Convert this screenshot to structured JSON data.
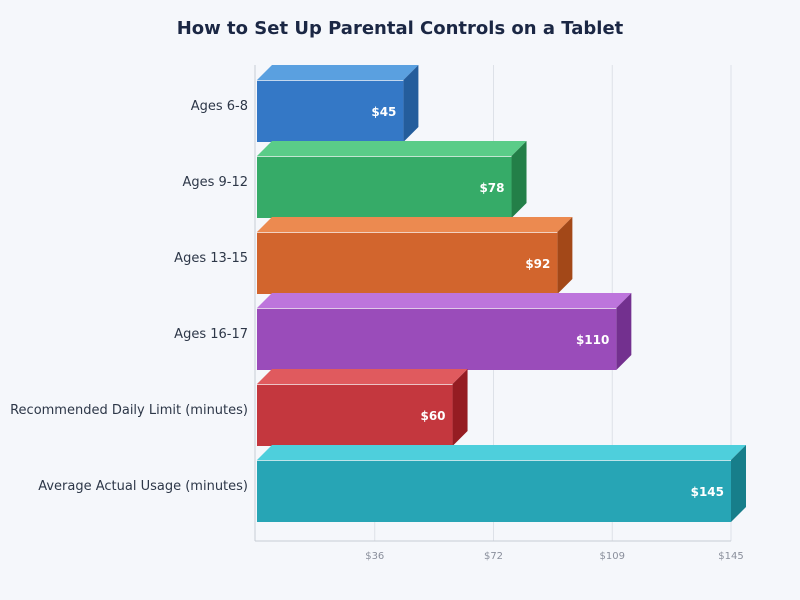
{
  "chart_data": {
    "type": "bar",
    "orientation": "horizontal",
    "style": "3d",
    "title": "How to Set Up Parental Controls on a Tablet",
    "xlabel": "",
    "ylabel": "",
    "categories": [
      "Ages 6-8",
      "Ages 9-12",
      "Ages 13-15",
      "Ages 16-17",
      "Recommended Daily Limit (minutes)",
      "Average Actual Usage (minutes)"
    ],
    "values": [
      45,
      78,
      92,
      110,
      60,
      145
    ],
    "value_labels": [
      "$45",
      "$78",
      "$92",
      "$110",
      "$60",
      "$145"
    ],
    "xlim": [
      0,
      145
    ],
    "x_ticks": [
      36.25,
      72.5,
      108.75,
      145
    ],
    "x_tick_labels": [
      "$36",
      "$72",
      "$109",
      "$145"
    ],
    "grid": true,
    "legend": "none",
    "colors": [
      {
        "front": "#3478c6",
        "top": "#5aa0e0",
        "side": "#245d9c"
      },
      {
        "front": "#36ab68",
        "top": "#5acc88",
        "side": "#237f48"
      },
      {
        "front": "#d2652d",
        "top": "#ec8a50",
        "side": "#a34818"
      },
      {
        "front": "#9a4cba",
        "top": "#bd75dc",
        "side": "#73308f"
      },
      {
        "front": "#c4373e",
        "top": "#e05a5e",
        "side": "#951c22"
      },
      {
        "front": "#27a5b5",
        "top": "#4ecfdc",
        "side": "#177e8a"
      }
    ]
  }
}
